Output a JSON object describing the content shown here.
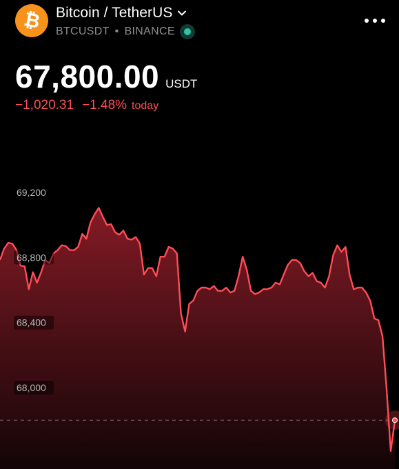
{
  "header": {
    "logo_icon": "bitcoin-icon",
    "logo_symbol": "₿",
    "pair_name": "Bitcoin / TetherUS",
    "symbol": "BTCUSDT",
    "exchange": "BINANCE",
    "more_icon": "more-horizontal-icon"
  },
  "quote": {
    "price": "67,800.00",
    "unit": "USDT",
    "change": "−1,020.31",
    "change_percent": "−1.48%",
    "period": "today"
  },
  "colors": {
    "accent_down": "#ff4d57",
    "bitcoin_orange": "#f7931a",
    "live_green": "#2ec4a6",
    "background": "#000000"
  },
  "chart_data": {
    "type": "area",
    "y_tick_labels": [
      "69,200",
      "68,800",
      "68,400",
      "68,000"
    ],
    "y_ticks": [
      69200,
      68800,
      68400,
      68000
    ],
    "ylim": [
      67500,
      69450
    ],
    "reference_line": 67800,
    "series": [
      {
        "values": [
          68785,
          68855,
          68890,
          68885,
          68845,
          68750,
          68745,
          68605,
          68710,
          68645,
          68710,
          68785,
          68765,
          68825,
          68845,
          68875,
          68870,
          68845,
          68845,
          68865,
          68945,
          68915,
          69015,
          69065,
          69105,
          69050,
          69000,
          69005,
          68955,
          68940,
          68965,
          68915,
          68910,
          68925,
          68885,
          68695,
          68735,
          68735,
          68685,
          68805,
          68805,
          68865,
          68855,
          68825,
          68455,
          68345,
          68515,
          68535,
          68595,
          68615,
          68615,
          68605,
          68625,
          68595,
          68595,
          68615,
          68585,
          68595,
          68685,
          68805,
          68725,
          68595,
          68575,
          68585,
          68605,
          68605,
          68615,
          68645,
          68635,
          68695,
          68755,
          68785,
          68785,
          68765,
          68715,
          68685,
          68705,
          68655,
          68645,
          68615,
          68685,
          68815,
          68875,
          68835,
          68865,
          68695,
          68605,
          68615,
          68615,
          68585,
          68535,
          68425,
          68415,
          68315,
          67985,
          67610,
          67800
        ]
      }
    ]
  }
}
